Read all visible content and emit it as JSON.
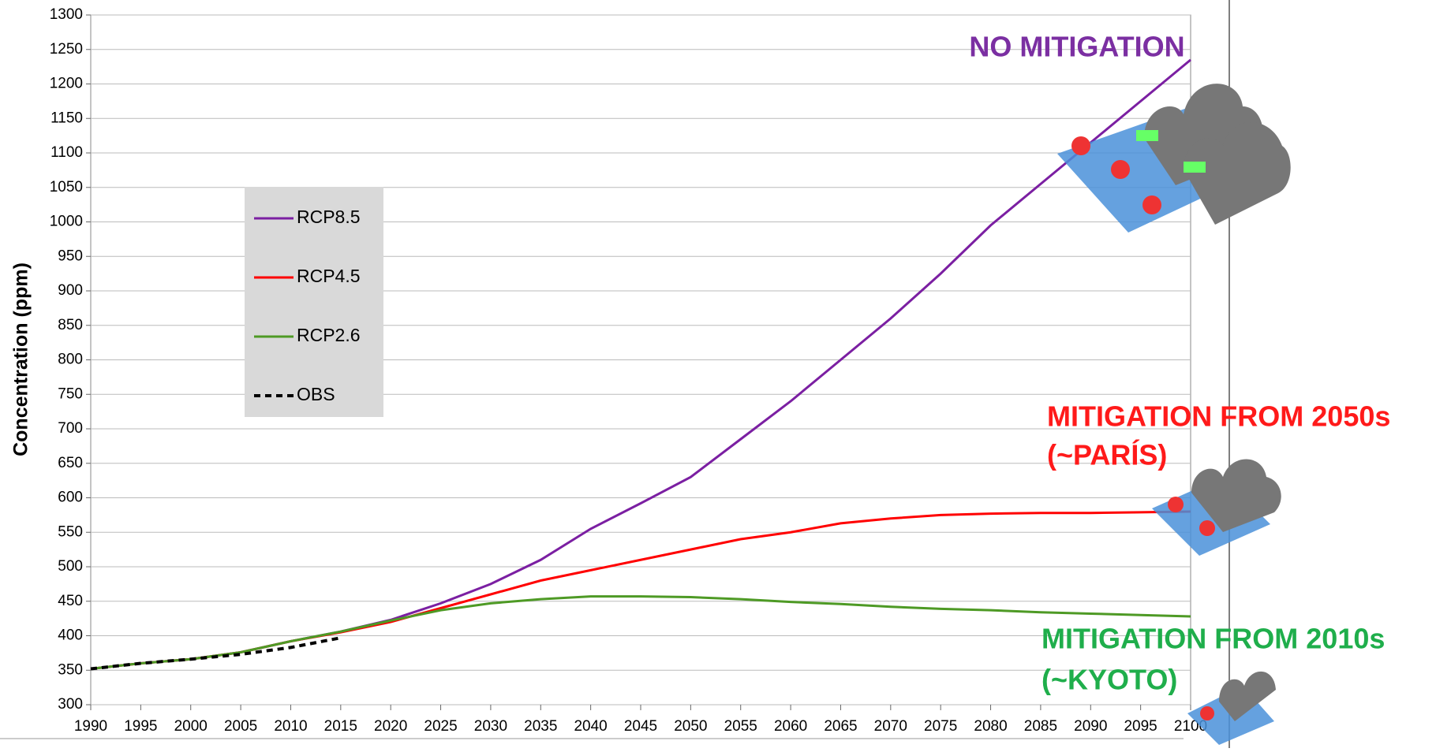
{
  "chart_data": {
    "type": "line",
    "y_label": "Concentration (ppm)",
    "x": [
      1990,
      1995,
      2000,
      2005,
      2010,
      2015,
      2020,
      2025,
      2030,
      2035,
      2040,
      2045,
      2050,
      2055,
      2060,
      2065,
      2070,
      2075,
      2080,
      2085,
      2090,
      2095,
      2100
    ],
    "xlim": [
      1990,
      2100
    ],
    "xticks": [
      1990,
      1995,
      2000,
      2005,
      2010,
      2015,
      2020,
      2025,
      2030,
      2035,
      2040,
      2045,
      2050,
      2055,
      2060,
      2065,
      2070,
      2075,
      2080,
      2085,
      2090,
      2095,
      2100
    ],
    "ylim": [
      300,
      1300
    ],
    "yticks": [
      300,
      350,
      400,
      450,
      500,
      550,
      600,
      650,
      700,
      750,
      800,
      850,
      900,
      950,
      1000,
      1050,
      1100,
      1150,
      1200,
      1250,
      1300
    ],
    "grid": true,
    "series": [
      {
        "name": "RCP8.5",
        "color": "#7b1fa2",
        "dash": false,
        "values": [
          352,
          360,
          366,
          376,
          392,
          406,
          423,
          447,
          475,
          510,
          555,
          592,
          630,
          685,
          740,
          800,
          860,
          925,
          995,
          1055,
          1115,
          1175,
          1235
        ]
      },
      {
        "name": "RCP4.5",
        "color": "#ff0000",
        "dash": false,
        "values": [
          352,
          360,
          366,
          376,
          392,
          405,
          420,
          440,
          460,
          480,
          495,
          510,
          525,
          540,
          550,
          563,
          570,
          575,
          577,
          578,
          578,
          579,
          580
        ]
      },
      {
        "name": "RCP2.6",
        "color": "#4e9a25",
        "dash": false,
        "values": [
          352,
          360,
          366,
          376,
          392,
          406,
          422,
          437,
          447,
          453,
          457,
          457,
          456,
          453,
          449,
          446,
          442,
          439,
          437,
          434,
          432,
          430,
          428
        ]
      },
      {
        "name": "OBS",
        "color": "#000000",
        "dash": true,
        "values": [
          352,
          360,
          366,
          373,
          383,
          397,
          null,
          null,
          null,
          null,
          null,
          null,
          null,
          null,
          null,
          null,
          null,
          null,
          null,
          null,
          null,
          null,
          null
        ]
      }
    ],
    "annotations": [
      {
        "text": "NO MITIGATION",
        "color": "#7b2fa2"
      },
      {
        "text": "MITIGATION FROM 2050s",
        "color": "#ff1a1a"
      },
      {
        "text": "(~PARÍS)",
        "color": "#ff1a1a"
      },
      {
        "text": "MITIGATION FROM 2010s",
        "color": "#1fae4b"
      },
      {
        "text": "(~KYOTO)",
        "color": "#1fae4b"
      }
    ]
  }
}
